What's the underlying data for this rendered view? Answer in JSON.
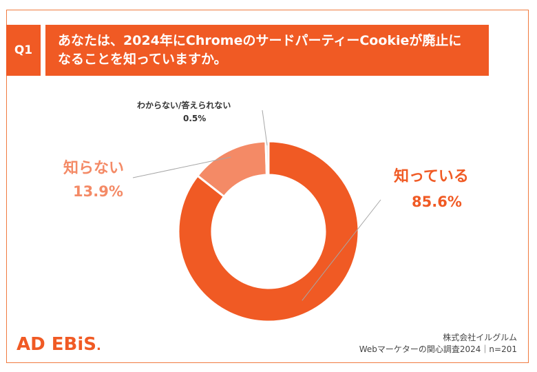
{
  "header": {
    "q_label": "Q1",
    "question_line1": "あなたは、2024年にChromeのサードパーティーCookieが廃止に",
    "question_line2": "なることを知っていますか。"
  },
  "chart_data": {
    "type": "pie",
    "variant": "donut",
    "slices": [
      {
        "label": "知っている",
        "value": 85.6,
        "value_label": "85.6%",
        "color": "#f05a24"
      },
      {
        "label": "知らない",
        "value": 13.9,
        "value_label": "13.9%",
        "color": "#f48a66"
      },
      {
        "label": "わからない/答えられない",
        "value": 0.5,
        "value_label": "0.5%",
        "color": "#d8d8d8"
      }
    ]
  },
  "colors": {
    "accent": "#f05a24",
    "secondary": "#f48a66",
    "border": "#f07a3e"
  },
  "footer": {
    "logo_main": "AD EBiS",
    "logo_dot": ".",
    "company": "株式会社イルグルム",
    "survey": "Webマーケターの関心調査2024｜n=201"
  }
}
